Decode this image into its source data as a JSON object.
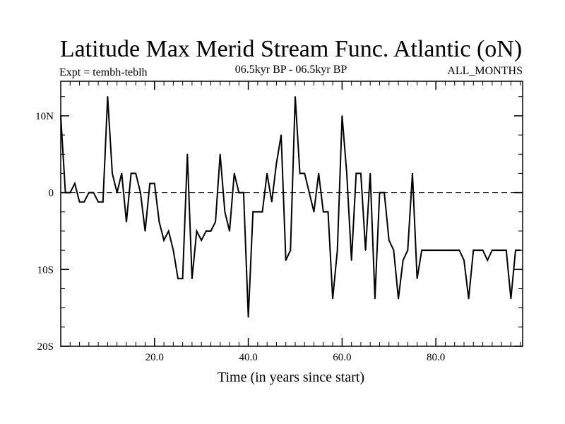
{
  "chart_data": {
    "type": "line",
    "title": "Latitude Max Merid Stream Func. Atlantic (oN)",
    "subtitle_left": "Expt = tembh-teblh",
    "subtitle_center": "06.5kyr BP - 06.5kyr BP",
    "subtitle_right": "ALL_MONTHS",
    "xlabel": "Time (in years since start)",
    "ylabel": "",
    "xlim": [
      0,
      98.5
    ],
    "ylim": [
      -20,
      14.5
    ],
    "x_ticks": [
      20,
      40,
      60,
      80
    ],
    "x_tick_labels": [
      "20.0",
      "40.0",
      "60.0",
      "80.0"
    ],
    "y_ticks": [
      10,
      0,
      -10,
      -20
    ],
    "y_tick_labels": [
      "10N",
      "0",
      "10S",
      "20S"
    ],
    "zero_line": "dashed",
    "series": [
      {
        "name": "latitude",
        "x": [
          0,
          1,
          2,
          3,
          4,
          5,
          6,
          7,
          8,
          9,
          10,
          11,
          12,
          13,
          14,
          15,
          16,
          17,
          18,
          19,
          20,
          21,
          22,
          23,
          24,
          25,
          26,
          27,
          28,
          29,
          30,
          31,
          32,
          33,
          34,
          35,
          36,
          37,
          38,
          39,
          40,
          41,
          42,
          43,
          44,
          45,
          46,
          47,
          48,
          49,
          50,
          51,
          52,
          53,
          54,
          55,
          56,
          57,
          58,
          59,
          60,
          61,
          62,
          63,
          64,
          65,
          66,
          67,
          68,
          69,
          70,
          71,
          72,
          73,
          74,
          75,
          76,
          77,
          78,
          79,
          80,
          81,
          82,
          83,
          84,
          85,
          86,
          87,
          88,
          89,
          90,
          91,
          92,
          93,
          94,
          95,
          96,
          97,
          98
        ],
        "values": [
          10,
          0,
          0,
          1.2,
          -1.2,
          -1.2,
          0,
          0,
          -1.2,
          -1.2,
          12.5,
          2.5,
          0,
          2.5,
          -3.8,
          2.5,
          2.5,
          0,
          -5,
          1.2,
          1.2,
          -3.8,
          -6.2,
          -5,
          -7.5,
          -11.2,
          -11.2,
          5,
          -11.2,
          -5,
          -6.2,
          -5,
          -5,
          -3.8,
          5,
          -2.5,
          -5,
          2.5,
          0,
          0,
          -16.2,
          -2.5,
          -2.5,
          -2.5,
          2.5,
          -1.2,
          3.8,
          7.5,
          -8.8,
          -7.5,
          12.5,
          2.5,
          2.5,
          0,
          -2.5,
          2.5,
          -2.5,
          -2.5,
          -13.8,
          -7.5,
          10,
          2.5,
          -8.8,
          2.5,
          2.5,
          -7.5,
          2.5,
          -13.8,
          0,
          0,
          -6.2,
          -7.5,
          -13.8,
          -8.8,
          -7.5,
          2.5,
          -11.2,
          -7.5,
          -7.5,
          -7.5,
          -7.5,
          -7.5,
          -7.5,
          -7.5,
          -7.5,
          -7.5,
          -8.8,
          -13.8,
          -7.5,
          -7.5,
          -7.5,
          -8.8,
          -7.5,
          -7.5,
          -7.5,
          -7.5,
          -13.8,
          -7.5,
          -7.5
        ]
      }
    ]
  },
  "colors": {
    "line": "#000000",
    "background": "#ffffff"
  }
}
